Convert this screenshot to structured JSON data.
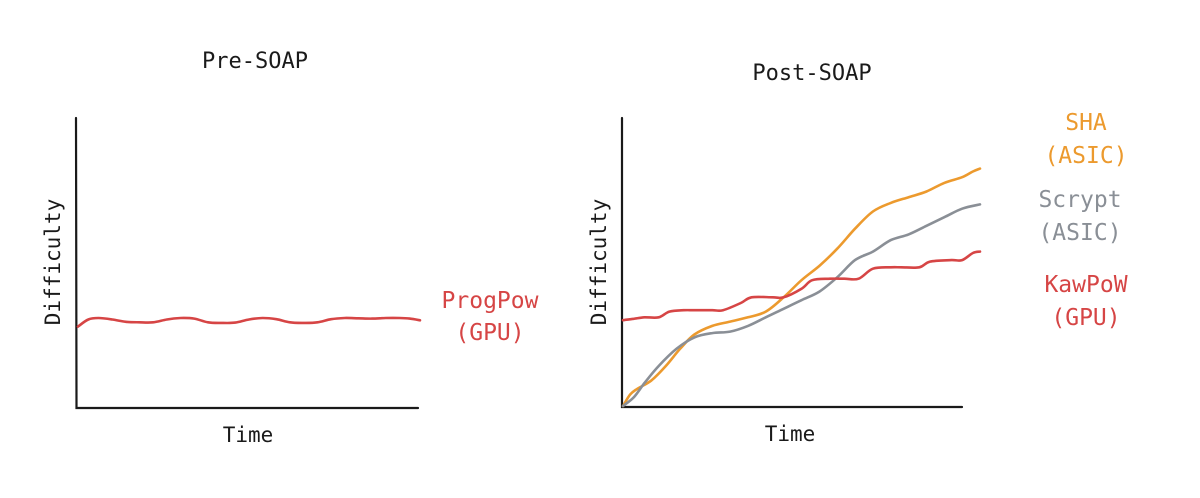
{
  "colors": {
    "progpow": "#d64545",
    "kawpow": "#d64545",
    "sha": "#ec9a2e",
    "scrypt": "#8a8f96",
    "axis": "#1a1a1a"
  },
  "chart_data": [
    {
      "type": "line",
      "title": "Pre-SOAP",
      "xlabel": "Time",
      "ylabel": "Difficulty",
      "xlim": [
        0,
        100
      ],
      "ylim": [
        0,
        100
      ],
      "grid": false,
      "legend": "right",
      "series": [
        {
          "name": "ProgPow",
          "name_lines": [
            "ProgPow",
            "(GPU)"
          ],
          "color": "#d64545",
          "x": [
            0,
            3,
            6,
            10,
            14,
            18,
            22,
            26,
            30,
            34,
            38,
            42,
            46,
            50,
            54,
            58,
            62,
            66,
            70,
            74,
            78,
            82,
            86,
            90,
            94,
            97,
            100
          ],
          "y": [
            28,
            30.5,
            31,
            30.5,
            29.7,
            29.5,
            29.5,
            30.5,
            31,
            30.8,
            29.5,
            29.3,
            29.4,
            30.5,
            31,
            30.6,
            29.5,
            29.3,
            29.5,
            30.6,
            31,
            30.9,
            30.8,
            31,
            31,
            30.8,
            30.2
          ]
        }
      ]
    },
    {
      "type": "line",
      "title": "Post-SOAP",
      "xlabel": "Time",
      "ylabel": "Difficulty",
      "xlim": [
        0,
        100
      ],
      "ylim": [
        0,
        100
      ],
      "grid": false,
      "legend": "right",
      "series": [
        {
          "name": "SHA",
          "name_lines": [
            "SHA",
            "(ASIC)"
          ],
          "color": "#ec9a2e",
          "x": [
            0,
            2,
            4,
            8,
            12,
            16,
            20,
            25,
            30,
            35,
            40,
            45,
            50,
            55,
            60,
            65,
            70,
            75,
            80,
            85,
            90,
            95,
            98,
            100
          ],
          "y": [
            0,
            4,
            6,
            9,
            14,
            20,
            25,
            28,
            29.5,
            31,
            33,
            38,
            44,
            49,
            55,
            62,
            68,
            71,
            73,
            75,
            78,
            80,
            82,
            83
          ]
        },
        {
          "name": "Scrypt",
          "name_lines": [
            "Scrypt",
            "(ASIC)"
          ],
          "color": "#8a8f96",
          "x": [
            0,
            3,
            6,
            10,
            15,
            20,
            25,
            30,
            35,
            40,
            45,
            50,
            55,
            60,
            65,
            70,
            75,
            80,
            85,
            90,
            95,
            100
          ],
          "y": [
            0,
            3,
            8,
            14,
            20,
            24,
            25.5,
            26,
            28,
            31,
            34,
            37,
            40,
            45,
            51,
            54,
            58,
            60,
            63,
            66,
            69,
            70.5
          ]
        },
        {
          "name": "KawPoW",
          "name_lines": [
            "KawPoW",
            "(GPU)"
          ],
          "color": "#d64545",
          "x": [
            0,
            3,
            6,
            10,
            13,
            17,
            20,
            25,
            28,
            33,
            36,
            42,
            45,
            50,
            53,
            58,
            62,
            66,
            70,
            75,
            78,
            83,
            86,
            92,
            95,
            98,
            100
          ],
          "y": [
            30,
            30.5,
            31,
            31,
            33,
            33.5,
            33.5,
            33.5,
            33.5,
            36,
            38,
            38,
            38,
            41,
            44,
            44.5,
            44.5,
            44.5,
            48,
            48.5,
            48.5,
            48.5,
            50.5,
            51,
            51,
            53.5,
            54
          ]
        }
      ]
    }
  ]
}
